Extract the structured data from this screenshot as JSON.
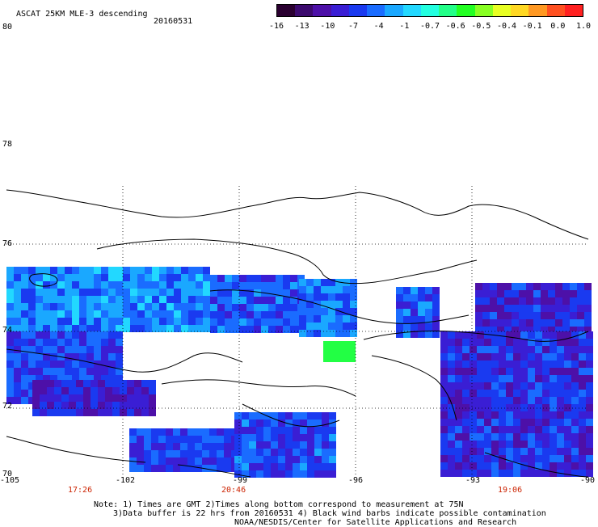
{
  "title": "ASCAT 25KM MLE-3 descending",
  "date": "20160531",
  "colorbar": {
    "labels": [
      "-16",
      "-13",
      "-10",
      "-7",
      "-4",
      "-1",
      "-0.7",
      "-0.6",
      "-0.5",
      "-0.4",
      "-0.1",
      "0.0",
      "1.0"
    ],
    "colors": [
      "#2a0030",
      "#3c0a6e",
      "#4d10a8",
      "#3a1ed4",
      "#1a3af0",
      "#1a6cff",
      "#1aa8ff",
      "#22d8ff",
      "#22ffe0",
      "#22ff88",
      "#22ff22",
      "#88ff22",
      "#e8ff22",
      "#ffd822",
      "#ff9822",
      "#ff5020",
      "#ff2020"
    ]
  },
  "lat_labels": [
    "80",
    "78",
    "76",
    "74",
    "72",
    "70"
  ],
  "lon_labels": [
    "-105",
    "-102",
    "-99",
    "-96",
    "-93",
    "-90"
  ],
  "time_labels": [
    "17:26",
    "20:46",
    "19:06"
  ],
  "notes": [
    "Note: 1) Times are GMT 2)Times along bottom correspond to measurement at 75N",
    "3)Data buffer is 22 hrs from 20160531 4) Black wind barbs indicate possible contamination",
    "NOAA/NESDIS/Center for Satellite Applications and Research"
  ]
}
